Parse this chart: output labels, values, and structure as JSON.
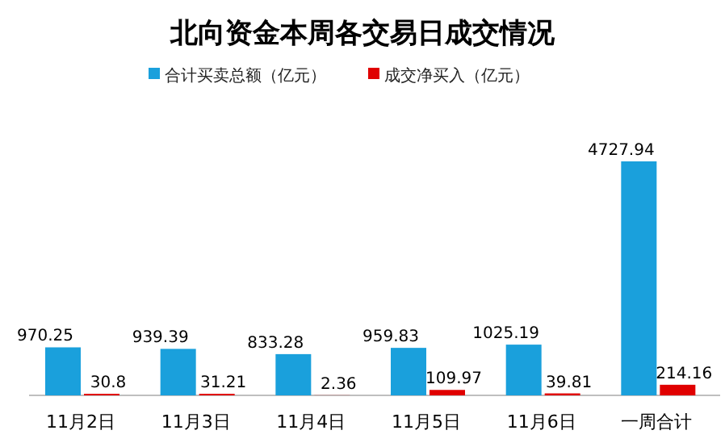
{
  "chart_data": {
    "type": "bar",
    "title": "北向资金本周各交易日成交情况",
    "categories": [
      "11月2日",
      "11月3日",
      "11月4日",
      "11月5日",
      "11月6日",
      "一周合计"
    ],
    "series": [
      {
        "name": "合计买卖总额（亿元）",
        "color": "#1aa0dc",
        "values": [
          970.25,
          939.39,
          833.28,
          959.83,
          1025.19,
          4727.94
        ]
      },
      {
        "name": "成交净买入（亿元）",
        "color": "#e00000",
        "values": [
          30.8,
          31.21,
          2.36,
          109.97,
          39.81,
          214.16
        ]
      }
    ],
    "data_labels": true,
    "legend": "top"
  }
}
